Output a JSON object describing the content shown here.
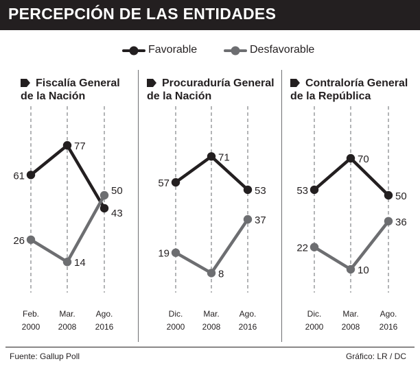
{
  "header": {
    "title": "PERCEPCIÓN DE LAS ENTIDADES"
  },
  "legend": {
    "favorable": "Favorable",
    "desfavorable": "Desfavorable"
  },
  "colors": {
    "favorable": "#231f20",
    "desfavorable": "#6d6e71",
    "grid": "#808285",
    "text": "#231f20"
  },
  "chart_data": [
    {
      "type": "line",
      "title": "Fiscalía General de la Nación",
      "title_lines": [
        "Fiscalía General",
        "de la Nación"
      ],
      "categories": [
        [
          "Feb.",
          "2000"
        ],
        [
          "Mar.",
          "2008"
        ],
        [
          "Ago.",
          "2016"
        ]
      ],
      "series": [
        {
          "name": "Favorable",
          "values": [
            61,
            77,
            43
          ]
        },
        {
          "name": "Desfavorable",
          "values": [
            26,
            14,
            50
          ]
        }
      ],
      "ylim": [
        0,
        100
      ]
    },
    {
      "type": "line",
      "title": "Procuraduría General de la Nación",
      "title_lines": [
        "Procuraduría General",
        "de la Nación"
      ],
      "categories": [
        [
          "Dic.",
          "2000"
        ],
        [
          "Mar.",
          "2008"
        ],
        [
          "Ago.",
          "2016"
        ]
      ],
      "series": [
        {
          "name": "Favorable",
          "values": [
            57,
            71,
            53
          ]
        },
        {
          "name": "Desfavorable",
          "values": [
            19,
            8,
            37
          ]
        }
      ],
      "ylim": [
        0,
        100
      ]
    },
    {
      "type": "line",
      "title": "Contraloría General de la República",
      "title_lines": [
        "Contraloría General",
        "de la República"
      ],
      "categories": [
        [
          "Dic.",
          "2000"
        ],
        [
          "Mar.",
          "2008"
        ],
        [
          "Ago.",
          "2016"
        ]
      ],
      "series": [
        {
          "name": "Favorable",
          "values": [
            53,
            70,
            50
          ]
        },
        {
          "name": "Desfavorable",
          "values": [
            22,
            10,
            36
          ]
        }
      ],
      "ylim": [
        0,
        100
      ]
    }
  ],
  "footer": {
    "source": "Fuente: Gallup Poll",
    "credit": "Gráfico: LR / DC"
  }
}
